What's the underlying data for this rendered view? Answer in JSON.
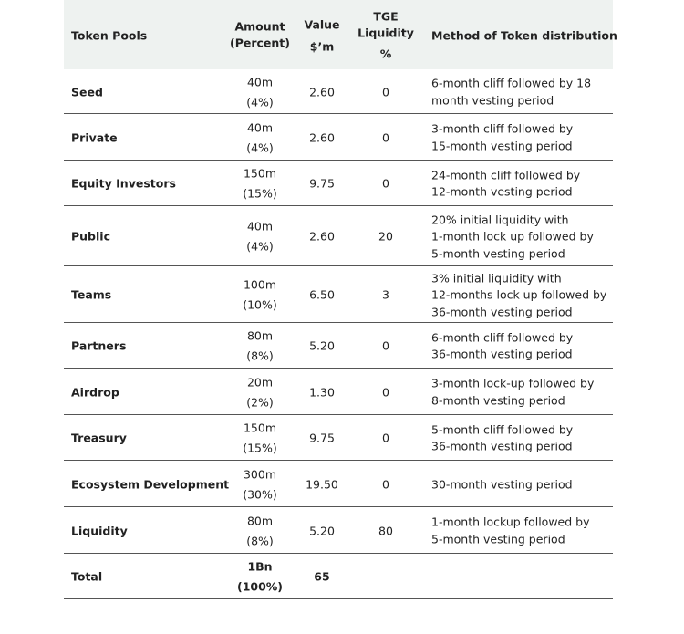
{
  "table": {
    "header": [
      [
        "Token Pools"
      ],
      [
        "Amount",
        "(Percent)"
      ],
      [
        "Value",
        "$’m"
      ],
      [
        "TGE",
        "Liquidity",
        "%"
      ],
      [
        "Method of Token distribution"
      ]
    ],
    "rows": [
      {
        "pool": "Seed",
        "amount": [
          "40m",
          "(4%)"
        ],
        "value": "2.60",
        "tge": "0",
        "method": [
          "6-month cliff followed by 18",
          "month vesting period"
        ]
      },
      {
        "pool": "Private",
        "amount": [
          "40m",
          "(4%)"
        ],
        "value": "2.60",
        "tge": "0",
        "method": [
          "3-month cliff followed by",
          "15-month vesting period"
        ]
      },
      {
        "pool": "Equity Investors",
        "amount": [
          "150m",
          "(15%)"
        ],
        "value": "9.75",
        "tge": "0",
        "method": [
          "24-month cliff followed by",
          "12-month vesting period"
        ]
      },
      {
        "pool": "Public",
        "amount": [
          "40m",
          "(4%)"
        ],
        "value": "2.60",
        "tge": "20",
        "method": [
          "20% initial liquidity with",
          "1-month lock up followed by",
          "5-month vesting period"
        ]
      },
      {
        "pool": "Teams",
        "amount": [
          "100m",
          "(10%)"
        ],
        "value": "6.50",
        "tge": "3",
        "method": [
          "3% initial liquidity with",
          "12-months lock up followed by",
          "36-month vesting period"
        ]
      },
      {
        "pool": "Partners",
        "amount": [
          "80m",
          "(8%)"
        ],
        "value": "5.20",
        "tge": "0",
        "method": [
          "6-month cliff followed by",
          "36-month vesting period"
        ]
      },
      {
        "pool": "Airdrop",
        "amount": [
          "20m",
          "(2%)"
        ],
        "value": "1.30",
        "tge": "0",
        "method": [
          "3-month lock-up followed by",
          "8-month vesting period"
        ]
      },
      {
        "pool": "Treasury",
        "amount": [
          "150m",
          "(15%)"
        ],
        "value": "9.75",
        "tge": "0",
        "method": [
          "5-month cliff followed by",
          "36-month vesting period"
        ]
      },
      {
        "pool": "Ecosystem Development",
        "amount": [
          "300m",
          "(30%)"
        ],
        "value": "19.50",
        "tge": "0",
        "method": [
          "30-month vesting period"
        ]
      },
      {
        "pool": "Liquidity",
        "amount": [
          "80m",
          "(8%)"
        ],
        "value": "5.20",
        "tge": "80",
        "method": [
          "1-month lockup followed by",
          "5-month vesting period"
        ]
      },
      {
        "pool": "Total",
        "amount": [
          "1Bn",
          "(100%)"
        ],
        "value": "65",
        "total": true
      }
    ]
  }
}
